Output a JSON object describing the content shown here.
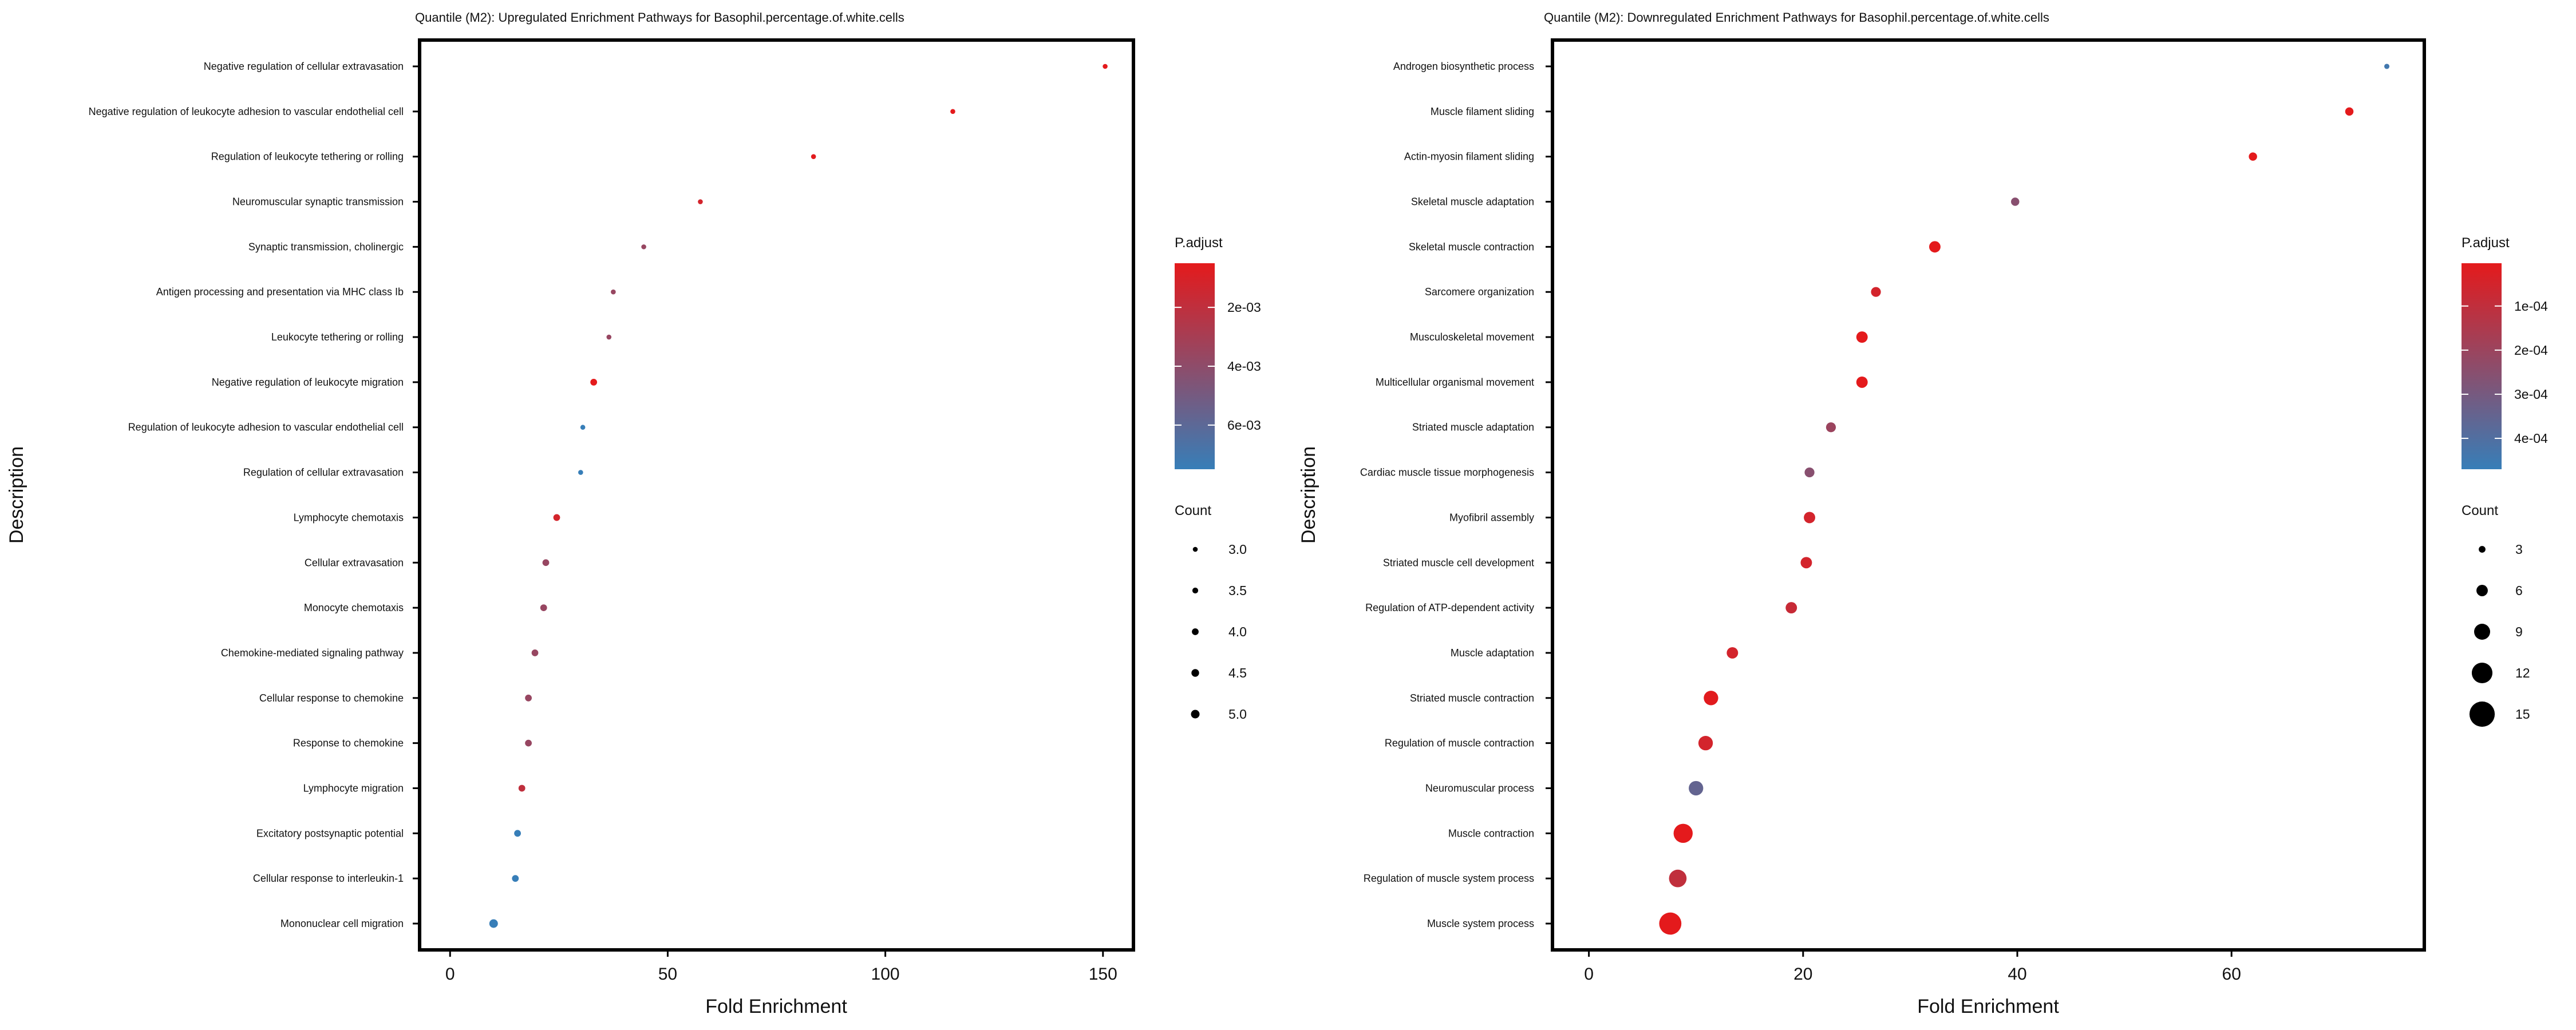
{
  "chart_data": [
    {
      "type": "scatter",
      "title": "Quantile (M2): Upregulated Enrichment Pathways for Basophil.percentage.of.white.cells",
      "xlabel": "Fold Enrichment",
      "ylabel": "Description",
      "xlim": [
        -7,
        157
      ],
      "xticks": [
        0,
        50,
        100,
        150
      ],
      "grid": false,
      "legend_position": "right",
      "categories": [
        "Negative regulation of cellular extravasation",
        "Negative regulation of leukocyte adhesion to vascular endothelial cell",
        "Regulation of leukocyte tethering or rolling",
        "Neuromuscular synaptic transmission",
        "Synaptic transmission, cholinergic",
        "Antigen processing and presentation via MHC class Ib",
        "Leukocyte tethering or rolling",
        "Negative regulation of leukocyte migration",
        "Regulation of leukocyte adhesion to vascular endothelial cell",
        "Regulation of cellular extravasation",
        "Lymphocyte chemotaxis",
        "Cellular extravasation",
        "Monocyte chemotaxis",
        "Chemokine-mediated signaling pathway",
        "Cellular response to chemokine",
        "Response to chemokine",
        "Lymphocyte migration",
        "Excitatory postsynaptic potential",
        "Cellular response to interleukin-1",
        "Mononuclear cell migration"
      ],
      "x": [
        150.5,
        115.5,
        83.5,
        57.5,
        44.5,
        37.5,
        36.5,
        33.0,
        30.5,
        30.0,
        24.5,
        22.0,
        21.5,
        19.5,
        18.0,
        18.0,
        16.5,
        15.5,
        15.0,
        10.0
      ],
      "count": [
        3,
        3,
        3,
        3,
        3,
        3,
        3,
        4,
        3,
        3,
        4,
        4,
        4,
        4,
        4,
        4,
        4,
        4,
        4,
        5
      ],
      "p_adjust": [
        0.0005,
        0.0005,
        0.0006,
        0.0012,
        0.0036,
        0.0036,
        0.0036,
        0.0005,
        0.0075,
        0.0075,
        0.0012,
        0.0036,
        0.0036,
        0.0036,
        0.0036,
        0.0036,
        0.002,
        0.0075,
        0.0075,
        0.0075
      ],
      "color_legend": {
        "title": "P.adjust",
        "ticks": [
          0.002,
          0.004,
          0.006
        ],
        "tick_labels": [
          "2e-03",
          "4e-03",
          "6e-03"
        ],
        "range": [
          0.0005,
          0.0075
        ],
        "low_color": "#e41a1c",
        "high_color": "#377eb8"
      },
      "size_legend": {
        "title": "Count",
        "values": [
          3.0,
          3.5,
          4.0,
          4.5,
          5.0
        ],
        "labels": [
          "3.0",
          "3.5",
          "4.0",
          "4.5",
          "5.0"
        ]
      }
    },
    {
      "type": "scatter",
      "title": "Quantile (M2): Downregulated Enrichment Pathways for Basophil.percentage.of.white.cells",
      "xlabel": "Fold Enrichment",
      "ylabel": "Description",
      "xlim": [
        -3.4,
        78
      ],
      "xticks": [
        0,
        20,
        40,
        60
      ],
      "grid": false,
      "legend_position": "right",
      "categories": [
        "Androgen biosynthetic process",
        "Muscle filament sliding",
        "Actin-myosin filament sliding",
        "Skeletal muscle adaptation",
        "Skeletal muscle contraction",
        "Sarcomere organization",
        "Musculoskeletal movement",
        "Multicellular organismal movement",
        "Striated muscle adaptation",
        "Cardiac muscle tissue morphogenesis",
        "Myofibril assembly",
        "Striated muscle cell development",
        "Regulation of ATP-dependent activity",
        "Muscle adaptation",
        "Striated muscle contraction",
        "Regulation of muscle contraction",
        "Neuromuscular process",
        "Muscle contraction",
        "Regulation of muscle system process",
        "Muscle system process"
      ],
      "x": [
        74.5,
        71.0,
        62.0,
        39.8,
        32.3,
        26.8,
        25.5,
        25.5,
        22.6,
        20.6,
        20.6,
        20.3,
        18.9,
        13.4,
        11.4,
        10.9,
        10.0,
        8.8,
        8.3,
        7.6
      ],
      "count": [
        2,
        4,
        4,
        4,
        6,
        5,
        6,
        6,
        5,
        5,
        6,
        6,
        6,
        6,
        8,
        8,
        8,
        11,
        10,
        13
      ],
      "p_adjust": [
        0.00044,
        3e-06,
        3e-06,
        0.00025,
        3e-06,
        5e-05,
        3e-06,
        3e-06,
        0.0002,
        0.00025,
        5e-05,
        5e-05,
        8e-05,
        5e-05,
        1e-05,
        5e-05,
        0.00035,
        3e-06,
        0.0001,
        3e-06
      ],
      "color_legend": {
        "title": "P.adjust",
        "ticks": [
          0.0001,
          0.0002,
          0.0003,
          0.0004
        ],
        "tick_labels": [
          "1e-04",
          "2e-04",
          "3e-04",
          "4e-04"
        ],
        "range": [
          3e-06,
          0.00047
        ],
        "low_color": "#e41a1c",
        "high_color": "#377eb8"
      },
      "size_legend": {
        "title": "Count",
        "values": [
          3,
          6,
          9,
          12,
          15
        ],
        "labels": [
          "3",
          "6",
          "9",
          "12",
          "15"
        ]
      }
    }
  ]
}
